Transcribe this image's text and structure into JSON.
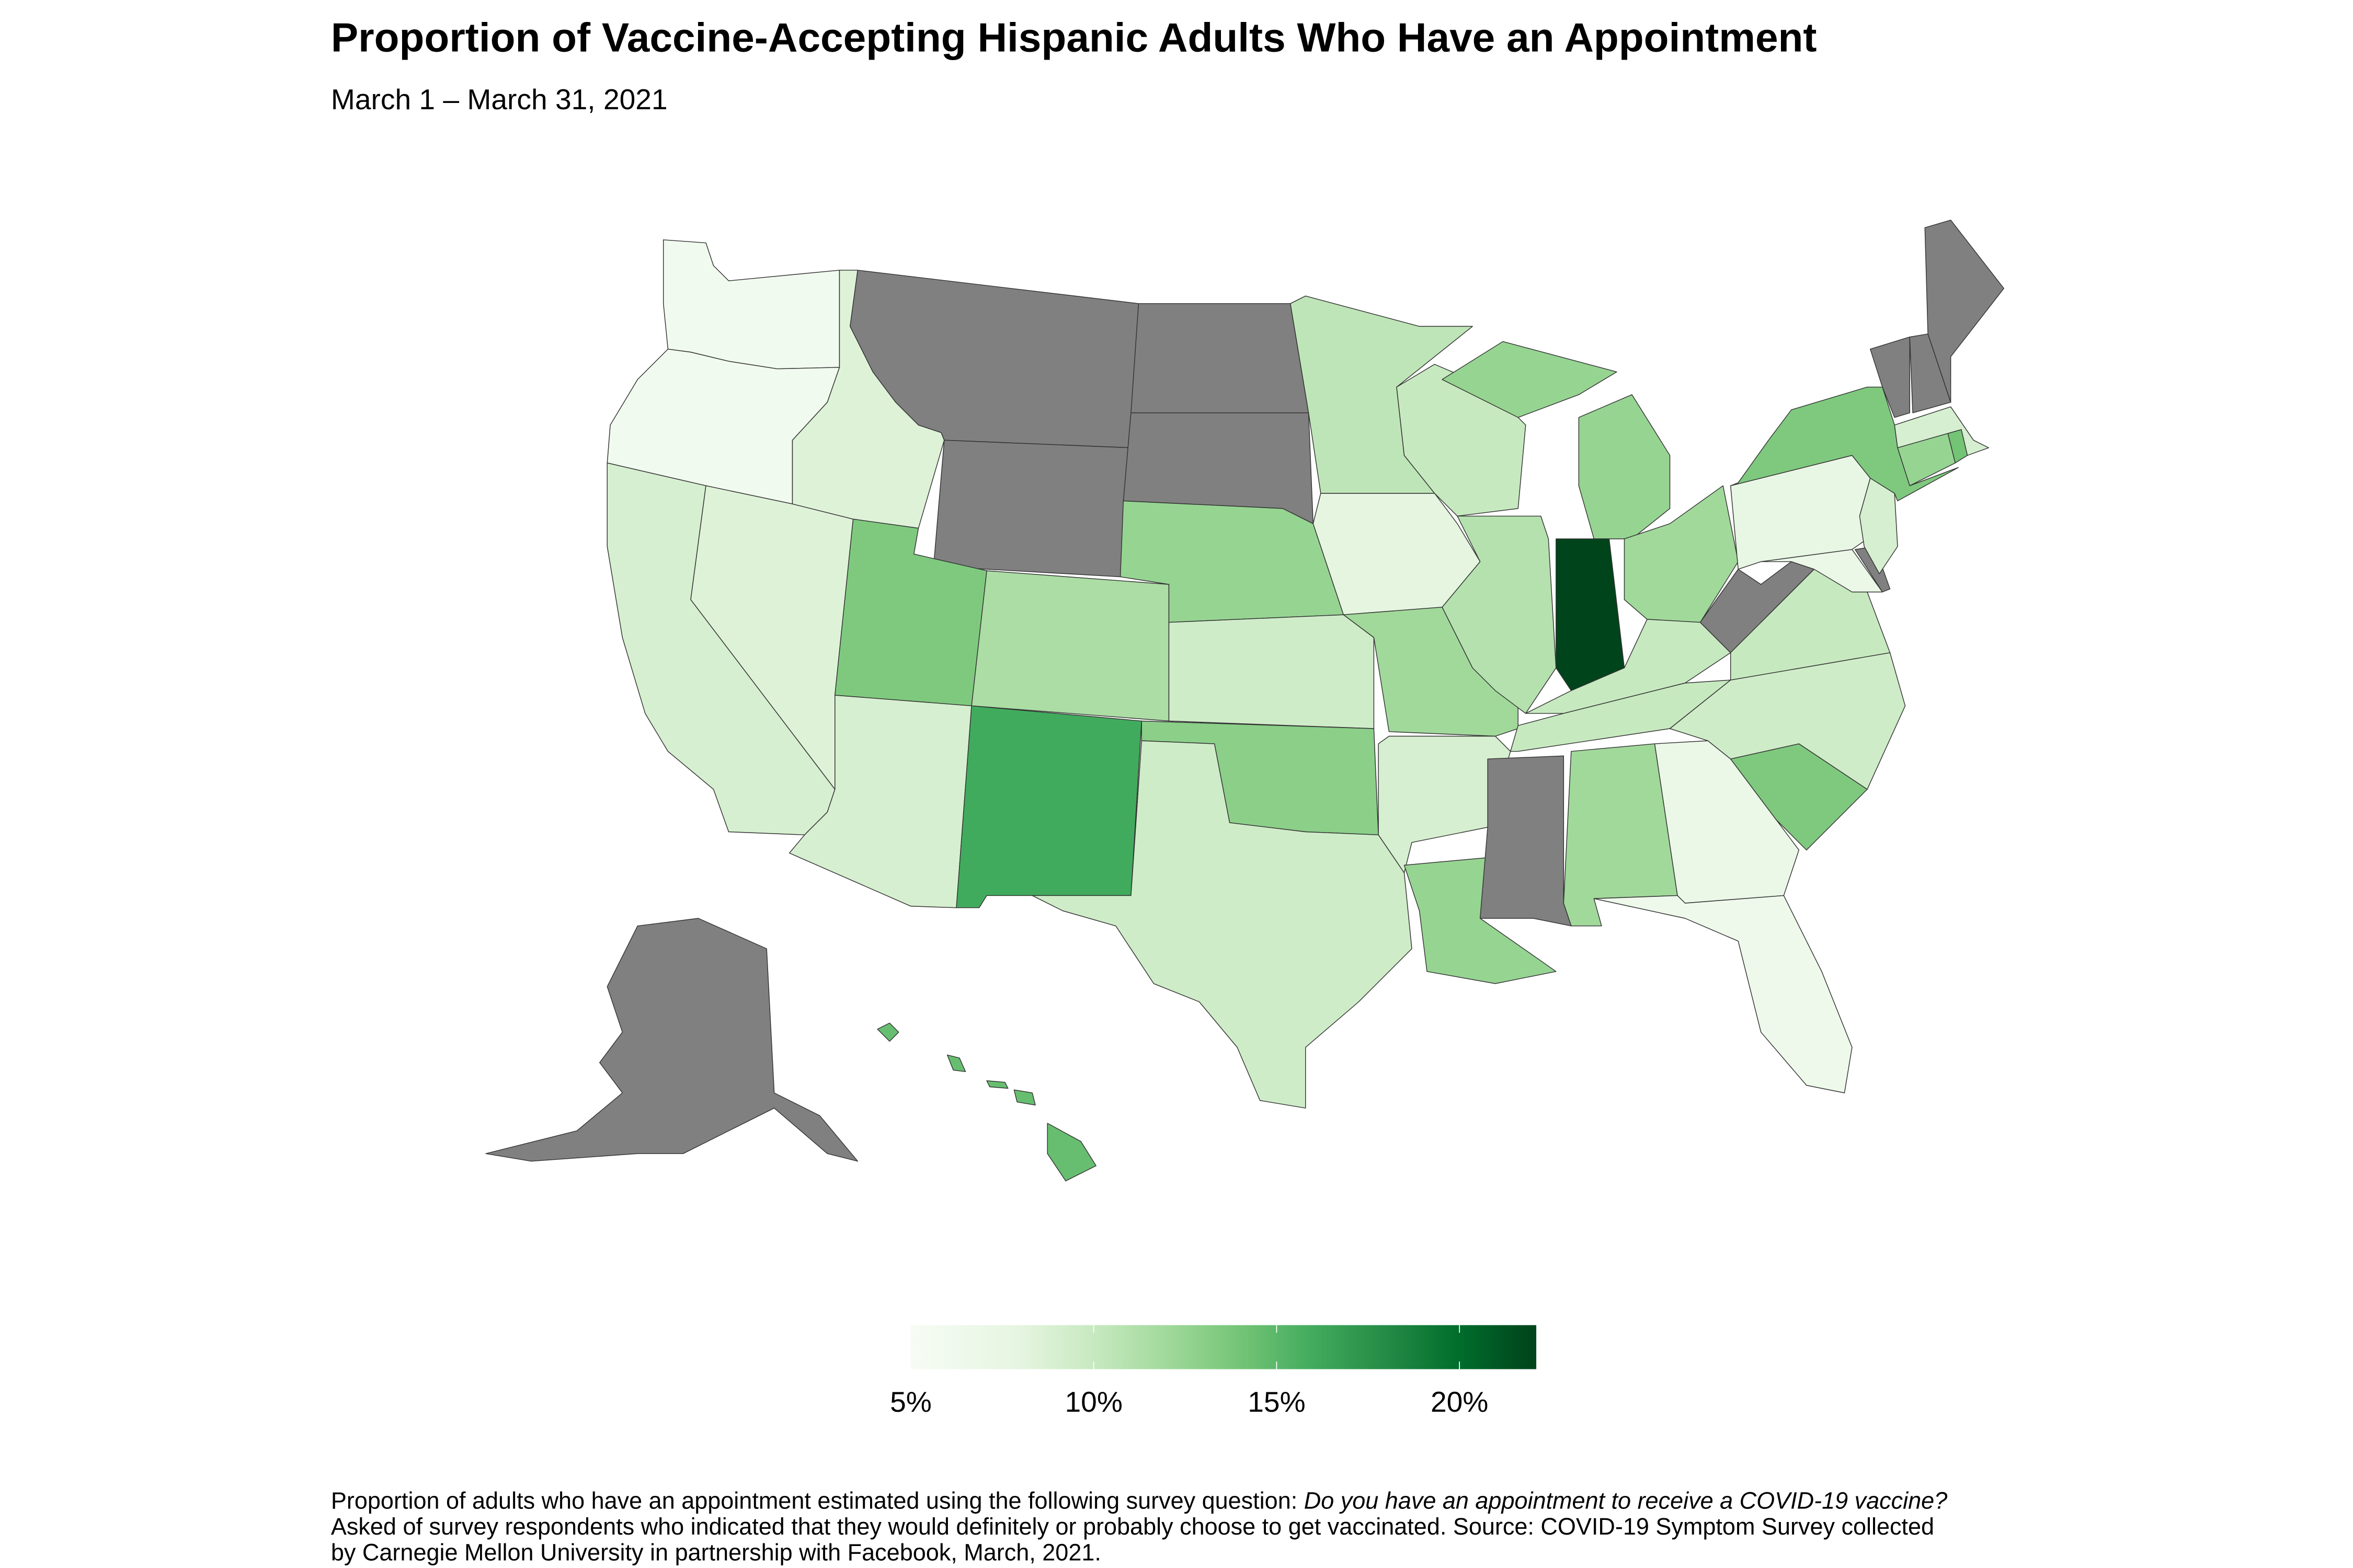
{
  "title": "Proportion of Vaccine-Accepting Hispanic Adults Who Have an Appointment",
  "subtitle": "March 1 – March 31, 2021",
  "footnote": {
    "line1_text": "Proportion of adults who have an appointment estimated using the following survey question: ",
    "line1_italic": "Do you have an appointment to receive a COVID-19 vaccine?",
    "line2": "Asked of survey respondents who indicated that they would definitely or probably choose to get vaccinated. Source: COVID-19 Symptom Survey collected",
    "line3": "by Carnegie Mellon University in partnership with Facebook, March, 2021."
  },
  "colors": {
    "missing": "#808080",
    "scale": [
      "#f7fcf5",
      "#e5f5e0",
      "#c7e9c0",
      "#a1d99b",
      "#74c476",
      "#41ab5d",
      "#238b45",
      "#006d2c",
      "#00441b"
    ]
  },
  "chart_data": {
    "type": "choropleth",
    "unit": "%",
    "legend": {
      "range": [
        5,
        22.1
      ],
      "ticks": [
        "5%",
        "10%",
        "15%",
        "20%"
      ],
      "placement": "bottom"
    },
    "states": {
      "WA": 6,
      "OR": 6,
      "CA": 9,
      "NV": 8.5,
      "ID": 8.5,
      "MT": null,
      "WY": null,
      "UT": 13.5,
      "AZ": 9,
      "CO": 11.5,
      "NM": 16,
      "ND": null,
      "SD": null,
      "NE": 12.5,
      "KS": 9.5,
      "OK": 13,
      "TX": 9.5,
      "MN": 10.5,
      "IA": 8,
      "MO": 12,
      "AR": 9,
      "LA": 12.5,
      "WI": 10,
      "IL": 11,
      "MS": null,
      "AL": 12,
      "MI": 12.5,
      "IN": 22,
      "OH": 12,
      "KY": 10,
      "TN": 10,
      "GA": 7,
      "FL": 6.5,
      "SC": 13.5,
      "NC": 9.5,
      "VA": 10,
      "WV": null,
      "PA": 7.5,
      "NY": 13.5,
      "NJ": 9,
      "DE": null,
      "MD": 7,
      "CT": 12.5,
      "RI": 14,
      "MA": 9,
      "VT": null,
      "NH": null,
      "ME": null,
      "AK": null,
      "HI": 14.5
    }
  }
}
